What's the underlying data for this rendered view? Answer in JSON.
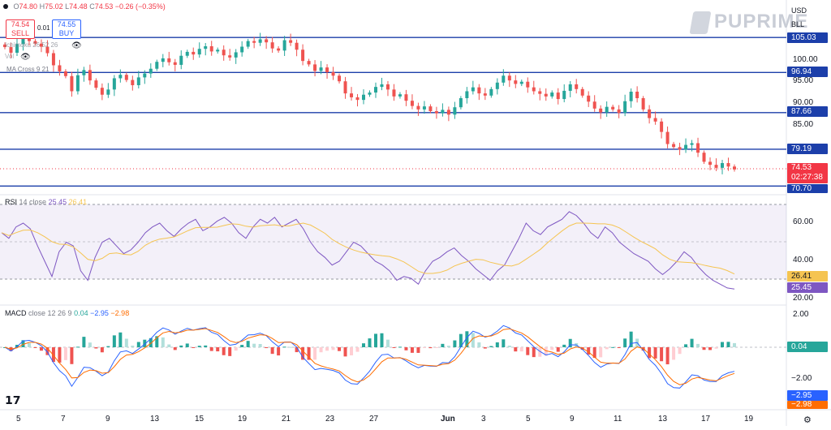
{
  "ohlc": {
    "open_label": "O",
    "open": "74.80",
    "high_label": "H",
    "high": "75.02",
    "low_label": "L",
    "low": "74.48",
    "close_label": "C",
    "close": "74.53",
    "change": "−0.26 (−0.35%)"
  },
  "trade": {
    "sell_price": "74.54",
    "sell_label": "SELL",
    "spread": "0.01",
    "buy_price": "74.55",
    "buy_label": "BUY"
  },
  "indicators": {
    "ichimoku": "Ichimoku 26 52 26",
    "obscured": "Vol",
    "ma_cross": "MA Cross 9 21"
  },
  "brand": "PUPRIME",
  "axis": {
    "currency": "USD",
    "unit": "BLL",
    "price_ticks": [
      "100.00",
      "95.00",
      "90.00",
      "85.00"
    ],
    "rsi_ticks": [
      "60.00",
      "40.00",
      "20.00"
    ],
    "macd_ticks": [
      "2.00",
      "−2.00"
    ]
  },
  "levels": [
    {
      "label": "105.03",
      "value": 105.03
    },
    {
      "label": "96.94",
      "value": 96.94
    },
    {
      "label": "87.66",
      "value": 87.66
    },
    {
      "label": "79.19",
      "value": 79.19
    },
    {
      "label": "70.70",
      "value": 70.7
    }
  ],
  "current": {
    "price": "74.53",
    "countdown": "02:27:38"
  },
  "rsi": {
    "title": "RSI",
    "params": "14 close",
    "value": "25.45",
    "ma_value": "26.41",
    "label_ma": "26.41",
    "label_rsi": "25.45"
  },
  "macd": {
    "title": "MACD",
    "params": "close 12 26 9",
    "hist": "0.04",
    "macd": "−2.95",
    "signal": "−2.98",
    "label_hist": "0.04",
    "label_macd": "−2.95",
    "label_signal": "−2.98"
  },
  "x_axis": [
    "5",
    "7",
    "9",
    "13",
    "15",
    "19",
    "21",
    "23",
    "27",
    "Jun",
    "3",
    "5",
    "9",
    "11",
    "13",
    "17",
    "19"
  ],
  "colors": {
    "up": "#26a69a",
    "down": "#ef5350",
    "level": "#1c3faa",
    "rsi": "#7e57c2",
    "rsi_ma": "#f5c451",
    "macd": "#2962ff",
    "signal": "#ff6d00",
    "current": "#f23645"
  },
  "chart_data": {
    "type": "candlestick",
    "y_scale_hint": "USD per barrel",
    "candles_close": [
      102.8,
      101.5,
      103.5,
      104.8,
      104.2,
      103.6,
      102.9,
      101.4,
      98.6,
      97.2,
      96.1,
      92.6,
      96.3,
      97.5,
      95.1,
      93.4,
      91.8,
      93.0,
      95.6,
      96.4,
      95.2,
      94.0,
      95.8,
      96.7,
      97.8,
      99.4,
      100.2,
      99.3,
      98.7,
      100.8,
      101.7,
      101.1,
      102.4,
      103.0,
      101.8,
      102.2,
      100.9,
      100.4,
      101.6,
      102.9,
      104.2,
      103.8,
      104.6,
      103.9,
      102.5,
      102.0,
      104.4,
      103.8,
      102.2,
      99.6,
      98.8,
      97.3,
      98.1,
      97.0,
      96.2,
      94.9,
      92.1,
      91.2,
      90.6,
      91.8,
      92.3,
      93.6,
      94.2,
      93.0,
      91.4,
      91.9,
      90.4,
      89.2,
      88.4,
      89.1,
      88.0,
      87.5,
      88.3,
      87.2,
      88.9,
      91.0,
      92.6,
      93.5,
      92.1,
      91.6,
      93.1,
      94.6,
      96.2,
      95.1,
      94.3,
      94.8,
      93.5,
      92.6,
      92.0,
      91.4,
      92.3,
      90.8,
      92.7,
      94.2,
      93.1,
      91.6,
      90.2,
      88.6,
      87.7,
      89.0,
      88.4,
      87.6,
      90.3,
      92.5,
      91.0,
      88.4,
      86.4,
      85.6,
      83.2,
      80.4,
      79.7,
      79.1,
      80.2,
      80.6,
      78.4,
      76.3,
      75.6,
      74.9,
      76.0,
      75.2,
      74.53
    ],
    "rsi_values": [
      55,
      52,
      58,
      60,
      57,
      48,
      40,
      32,
      45,
      50,
      48,
      35,
      30,
      42,
      50,
      52,
      48,
      44,
      46,
      50,
      55,
      58,
      60,
      56,
      53,
      57,
      60,
      62,
      56,
      58,
      61,
      63,
      60,
      55,
      52,
      58,
      62,
      60,
      63,
      58,
      60,
      62,
      57,
      50,
      45,
      42,
      38,
      40,
      45,
      50,
      48,
      44,
      40,
      38,
      35,
      30,
      32,
      31,
      28,
      35,
      40,
      42,
      45,
      47,
      43,
      40,
      36,
      33,
      30,
      35,
      38,
      45,
      52,
      60,
      56,
      54,
      58,
      60,
      62,
      66,
      64,
      60,
      55,
      52,
      58,
      55,
      50,
      47,
      44,
      42,
      40,
      36,
      33,
      36,
      40,
      45,
      42,
      37,
      33,
      30,
      28,
      26,
      25.45
    ]
  }
}
